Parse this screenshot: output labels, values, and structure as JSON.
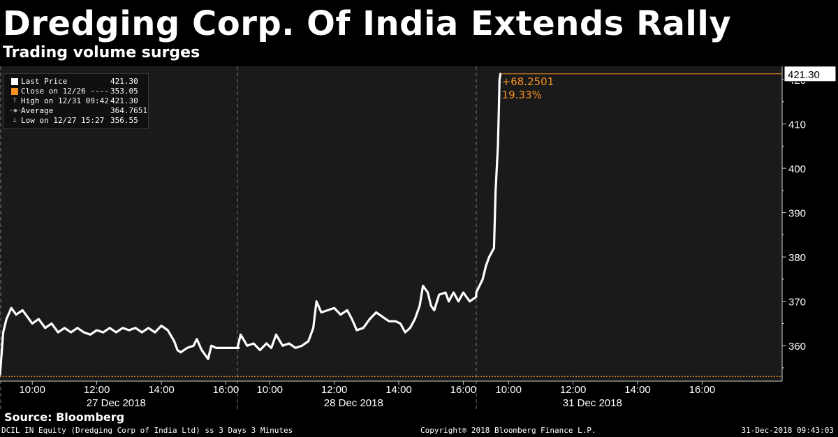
{
  "header": {
    "title": "Dredging Corp. Of India Extends Rally",
    "subtitle": "Trading volume surges"
  },
  "legend": {
    "items": [
      {
        "icon": "white-square",
        "label": "Last Price",
        "value": "421.30"
      },
      {
        "icon": "orange-square",
        "label": "Close on 12/26 ----",
        "value": "353.05"
      },
      {
        "icon": "high-marker",
        "label": "High on 12/31 09:42",
        "value": "421.30"
      },
      {
        "icon": "average-marker",
        "label": "Average",
        "value": "364.7651"
      },
      {
        "icon": "low-marker",
        "label": "Low on 12/27 15:27",
        "value": "356.55"
      }
    ]
  },
  "chart_data": {
    "type": "line",
    "ylim": [
      352,
      423
    ],
    "yticks": [
      360,
      370,
      380,
      390,
      400,
      410,
      420
    ],
    "ytick_labels": [
      "360",
      "370",
      "380",
      "390",
      "400",
      "410",
      "420"
    ],
    "days": [
      "27 Dec 2018",
      "28 Dec 2018",
      "31 Dec 2018"
    ],
    "time_ticks": [
      {
        "day": 0,
        "hour": 10,
        "label": "10:00"
      },
      {
        "day": 0,
        "hour": 12,
        "label": "12:00"
      },
      {
        "day": 0,
        "hour": 14,
        "label": "14:00"
      },
      {
        "day": 0,
        "hour": 16,
        "label": "16:00"
      },
      {
        "day": 1,
        "hour": 10,
        "label": "10:00"
      },
      {
        "day": 1,
        "hour": 12,
        "label": "12:00"
      },
      {
        "day": 1,
        "hour": 14,
        "label": "14:00"
      },
      {
        "day": 1,
        "hour": 16,
        "label": "16:00"
      },
      {
        "day": 2,
        "hour": 10,
        "label": "10:00"
      },
      {
        "day": 2,
        "hour": 12,
        "label": "12:00"
      },
      {
        "day": 2,
        "hour": 14,
        "label": "14:00"
      },
      {
        "day": 2,
        "hour": 16,
        "label": "16:00"
      }
    ],
    "series": [
      {
        "name": "Last Price",
        "points": [
          [
            0,
            9.0,
            353.5
          ],
          [
            0,
            9.1,
            363
          ],
          [
            0,
            9.2,
            366
          ],
          [
            0,
            9.35,
            368.5
          ],
          [
            0,
            9.5,
            367
          ],
          [
            0,
            9.7,
            368
          ],
          [
            0,
            10.0,
            365
          ],
          [
            0,
            10.2,
            366
          ],
          [
            0,
            10.4,
            364
          ],
          [
            0,
            10.6,
            365
          ],
          [
            0,
            10.8,
            363
          ],
          [
            0,
            11.0,
            364
          ],
          [
            0,
            11.2,
            363
          ],
          [
            0,
            11.4,
            364
          ],
          [
            0,
            11.6,
            363
          ],
          [
            0,
            11.8,
            362.5
          ],
          [
            0,
            12.0,
            363.5
          ],
          [
            0,
            12.2,
            363
          ],
          [
            0,
            12.4,
            364
          ],
          [
            0,
            12.6,
            363
          ],
          [
            0,
            12.8,
            364
          ],
          [
            0,
            13.0,
            363.5
          ],
          [
            0,
            13.2,
            364
          ],
          [
            0,
            13.4,
            363
          ],
          [
            0,
            13.6,
            364
          ],
          [
            0,
            13.8,
            363
          ],
          [
            0,
            14.0,
            364.5
          ],
          [
            0,
            14.2,
            363.5
          ],
          [
            0,
            14.4,
            361
          ],
          [
            0,
            14.5,
            359
          ],
          [
            0,
            14.6,
            358.5
          ],
          [
            0,
            14.8,
            359.5
          ],
          [
            0,
            15.0,
            360
          ],
          [
            0,
            15.1,
            361.5
          ],
          [
            0,
            15.25,
            359
          ],
          [
            0,
            15.45,
            357
          ],
          [
            0,
            15.55,
            360
          ],
          [
            0,
            15.7,
            359.5
          ],
          [
            0,
            16.0,
            359.5
          ],
          [
            0,
            16.3,
            359.5
          ],
          [
            0,
            16.4,
            359.5
          ],
          [
            1,
            9.0,
            359.5
          ],
          [
            1,
            9.1,
            362.5
          ],
          [
            1,
            9.3,
            360
          ],
          [
            1,
            9.5,
            360.5
          ],
          [
            1,
            9.7,
            359
          ],
          [
            1,
            9.9,
            360.5
          ],
          [
            1,
            10.05,
            359.5
          ],
          [
            1,
            10.2,
            362.5
          ],
          [
            1,
            10.4,
            360
          ],
          [
            1,
            10.6,
            360.5
          ],
          [
            1,
            10.8,
            359.5
          ],
          [
            1,
            11.0,
            360
          ],
          [
            1,
            11.2,
            361
          ],
          [
            1,
            11.35,
            364
          ],
          [
            1,
            11.45,
            370
          ],
          [
            1,
            11.6,
            367.5
          ],
          [
            1,
            11.8,
            368
          ],
          [
            1,
            12.0,
            368.5
          ],
          [
            1,
            12.2,
            367
          ],
          [
            1,
            12.4,
            368
          ],
          [
            1,
            12.55,
            366
          ],
          [
            1,
            12.7,
            363.5
          ],
          [
            1,
            12.9,
            364
          ],
          [
            1,
            13.1,
            366
          ],
          [
            1,
            13.3,
            367.5
          ],
          [
            1,
            13.5,
            366.5
          ],
          [
            1,
            13.7,
            365.5
          ],
          [
            1,
            13.9,
            365.5
          ],
          [
            1,
            14.05,
            365
          ],
          [
            1,
            14.2,
            363
          ],
          [
            1,
            14.35,
            364
          ],
          [
            1,
            14.5,
            366
          ],
          [
            1,
            14.65,
            369
          ],
          [
            1,
            14.75,
            373.5
          ],
          [
            1,
            14.9,
            372
          ],
          [
            1,
            15.0,
            369
          ],
          [
            1,
            15.1,
            368
          ],
          [
            1,
            15.25,
            371.5
          ],
          [
            1,
            15.45,
            372
          ],
          [
            1,
            15.55,
            370
          ],
          [
            1,
            15.7,
            372
          ],
          [
            1,
            15.85,
            370
          ],
          [
            1,
            16.0,
            372
          ],
          [
            1,
            16.2,
            370
          ],
          [
            1,
            16.4,
            371
          ],
          [
            2,
            9.0,
            372
          ],
          [
            2,
            9.2,
            375
          ],
          [
            2,
            9.3,
            378
          ],
          [
            2,
            9.4,
            380
          ],
          [
            2,
            9.55,
            382
          ],
          [
            2,
            9.6,
            395
          ],
          [
            2,
            9.67,
            405
          ],
          [
            2,
            9.7,
            413
          ],
          [
            2,
            9.72,
            420
          ],
          [
            2,
            9.75,
            421.3
          ]
        ]
      }
    ],
    "close_reference": 353.05,
    "annotations": {
      "last_value": "421.30",
      "change": "+68.2501",
      "change_pct": "19.33%"
    }
  },
  "footer": {
    "source": "Source: Bloomberg",
    "left": "DCIL IN Equity (Dredging Corp of India Ltd) ss 3 Days 3 Minutes",
    "center": "Copyright® 2018 Bloomberg Finance L.P.",
    "right": "31-Dec-2018 09:43:03"
  },
  "colors": {
    "background": "#000000",
    "plot": "#1a1a1a",
    "line": "#ffffff",
    "accent": "#f7931e"
  }
}
